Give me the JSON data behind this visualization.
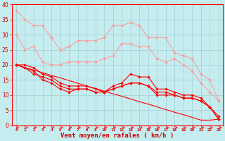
{
  "x": [
    0,
    1,
    2,
    3,
    4,
    5,
    6,
    7,
    8,
    9,
    10,
    11,
    12,
    13,
    14,
    15,
    16,
    17,
    18,
    19,
    20,
    21,
    22,
    23
  ],
  "bg_color": "#c5ecee",
  "grid_color": "#a0d0d4",
  "line_pink_color": "#ff9999",
  "line_red_color": "#ff0000",
  "xlabel": "Vent moyen/en rafales ( km/h )",
  "xlabel_color": "#cc0000",
  "tick_color": "#cc0000",
  "pink1_y": [
    38,
    35,
    33,
    33,
    29,
    25,
    26,
    28,
    28,
    28,
    29,
    33,
    33,
    34,
    33,
    29,
    29,
    29,
    24,
    23,
    22,
    17,
    15,
    8
  ],
  "pink2_y": [
    30,
    25,
    26,
    21,
    20,
    20,
    21,
    21,
    21,
    21,
    22,
    23,
    27,
    27,
    26,
    26,
    22,
    21,
    22,
    20,
    18,
    14,
    11,
    8
  ],
  "red1_y": [
    20,
    20,
    19,
    17,
    16,
    14,
    13,
    13,
    13,
    12,
    11,
    13,
    14,
    17,
    16,
    16,
    12,
    12,
    11,
    10,
    10,
    9,
    6,
    3
  ],
  "red2_y": [
    20,
    19,
    18,
    15,
    14,
    12,
    11,
    12,
    12,
    11,
    11,
    12,
    13,
    14,
    14,
    13,
    11,
    11,
    10,
    9,
    9,
    8,
    6,
    2
  ],
  "red3_y": [
    20,
    19,
    17,
    16,
    15,
    13,
    12,
    12,
    12,
    11,
    11,
    12,
    13,
    14,
    14,
    13,
    10,
    10,
    10,
    9,
    9,
    8,
    6,
    2
  ],
  "diag_red_y": [
    20,
    19.1,
    18.3,
    17.4,
    16.5,
    15.7,
    14.8,
    13.9,
    13.0,
    12.2,
    11.3,
    10.4,
    9.6,
    8.7,
    7.8,
    7.0,
    6.1,
    5.2,
    4.3,
    3.5,
    2.6,
    1.7,
    1.7,
    2.0
  ],
  "ylim": [
    0,
    40
  ],
  "xlim_min": -0.5,
  "xlim_max": 23.5,
  "yticks": [
    0,
    5,
    10,
    15,
    20,
    25,
    30,
    35,
    40
  ]
}
